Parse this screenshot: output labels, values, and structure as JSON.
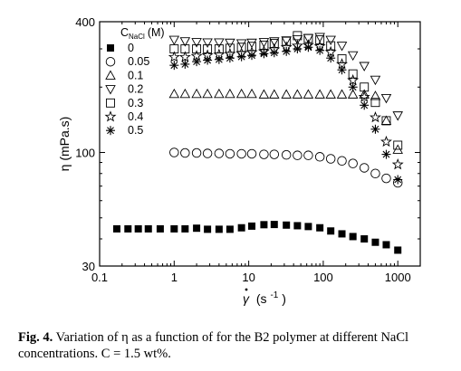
{
  "chart_data": {
    "type": "scatter",
    "xscale": "log",
    "yscale": "log",
    "xlim": [
      0.1,
      2000
    ],
    "ylim": [
      30,
      400
    ],
    "xticks": [
      "0.1",
      "1",
      "10",
      "100",
      "1000"
    ],
    "yticks": [
      "30",
      "100",
      "400"
    ],
    "xlabel_symbol": "γ",
    "xlabel_unit": "(s",
    "xlabel_exp": "-1",
    "xlabel_close": ")",
    "ylabel": "η (mPa.s)",
    "legend_title": "C",
    "legend_title_sub": "NaCl",
    "legend_title_unit": "(M)",
    "legend_position": "top-left",
    "series": [
      {
        "name": "0",
        "marker": "filled-square",
        "x": [
          0.17,
          0.24,
          0.33,
          0.45,
          0.65,
          1.0,
          1.4,
          2.0,
          2.8,
          4.0,
          5.6,
          8.0,
          11,
          16,
          22,
          32,
          45,
          63,
          90,
          126,
          178,
          250,
          355,
          500,
          700,
          1000
        ],
        "y": [
          44.5,
          44.5,
          44.5,
          44.5,
          44.5,
          44.5,
          44.5,
          44.8,
          44.3,
          44.3,
          44.3,
          45.0,
          45.8,
          46.5,
          46.6,
          46.3,
          46.0,
          45.6,
          45.0,
          43.5,
          42.2,
          41.0,
          40.0,
          38.6,
          37.6,
          35.5
        ]
      },
      {
        "name": "0.05",
        "marker": "circle",
        "x": [
          1.0,
          1.4,
          2.0,
          2.8,
          4.0,
          5.6,
          8.0,
          11,
          16,
          22,
          32,
          45,
          63,
          90,
          126,
          178,
          250,
          355,
          500,
          700,
          1000
        ],
        "y": [
          100,
          99.5,
          99.5,
          99,
          99,
          98.6,
          98.6,
          98.6,
          98,
          98,
          97.5,
          97,
          97,
          95.5,
          93.5,
          91.5,
          89,
          85,
          80,
          76,
          72.5
        ]
      },
      {
        "name": "0.1",
        "marker": "triangle-up",
        "x": [
          1.0,
          1.4,
          2.0,
          2.8,
          4.0,
          5.6,
          8.0,
          11,
          16,
          22,
          32,
          45,
          63,
          90,
          126,
          178,
          250,
          355,
          500,
          700,
          1000
        ],
        "y": [
          186,
          186,
          186,
          186,
          186,
          186,
          186,
          186,
          185,
          185,
          185,
          185,
          185,
          185,
          185,
          185,
          185,
          185,
          182,
          140,
          103
        ]
      },
      {
        "name": "0.2",
        "marker": "triangle-down",
        "x": [
          1.0,
          1.4,
          2.0,
          2.8,
          4.0,
          5.6,
          8.0,
          11,
          16,
          22,
          32,
          45,
          63,
          90,
          126,
          178,
          250,
          355,
          500,
          700,
          1000
        ],
        "y": [
          330,
          325,
          322,
          321,
          321,
          320,
          318,
          320,
          322,
          325,
          328,
          332,
          336,
          340,
          330,
          310,
          280,
          250,
          216,
          178,
          148
        ]
      },
      {
        "name": "0.3",
        "marker": "square",
        "x": [
          1.0,
          1.4,
          2.0,
          2.8,
          4.0,
          5.6,
          8.0,
          11,
          16,
          22,
          32,
          45,
          63,
          90,
          126,
          178,
          250,
          355,
          500,
          700,
          1000
        ],
        "y": [
          300,
          300,
          300,
          300,
          300,
          302,
          305,
          308,
          312,
          318,
          325,
          345,
          335,
          330,
          310,
          270,
          230,
          200,
          170,
          140,
          108
        ]
      },
      {
        "name": "0.4",
        "marker": "star",
        "x": [
          1.0,
          1.4,
          2.0,
          2.8,
          4.0,
          5.6,
          8.0,
          11,
          16,
          22,
          32,
          45,
          63,
          90,
          126,
          178,
          250,
          355,
          500,
          700,
          1000
        ],
        "y": [
          275,
          275,
          278,
          280,
          282,
          284,
          286,
          289,
          292,
          298,
          305,
          310,
          312,
          308,
          290,
          255,
          215,
          180,
          145,
          112,
          88
        ]
      },
      {
        "name": "0.5",
        "marker": "asterisk",
        "x": [
          1.0,
          1.4,
          2.0,
          2.8,
          4.0,
          5.6,
          8.0,
          11,
          16,
          22,
          32,
          45,
          63,
          90,
          126,
          178,
          250,
          355,
          500,
          700,
          1000
        ],
        "y": [
          252,
          255,
          262,
          266,
          268,
          272,
          276,
          280,
          285,
          288,
          292,
          300,
          305,
          295,
          272,
          240,
          200,
          165,
          128,
          98,
          75
        ]
      }
    ]
  },
  "caption": {
    "label": "Fig. 4.",
    "text": " Variation of η as a function of for the B2 polymer at different NaCl concentrations. C = 1.5 wt%."
  }
}
